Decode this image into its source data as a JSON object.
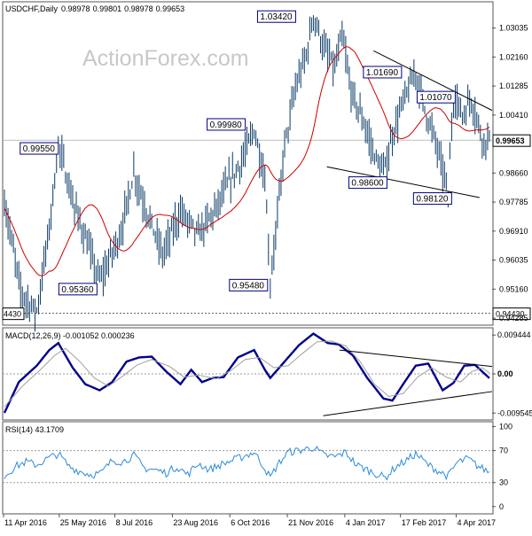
{
  "chart_data": [
    {
      "type": "ohlc",
      "panel": "price",
      "symbol": "USDCHF",
      "timeframe": "Daily",
      "title": "USDCHF,Daily",
      "header_ohlc": [
        "0.98978",
        "0.99801",
        "0.98978",
        "0.99653"
      ],
      "watermark": "ActionForex.com",
      "y_axis": {
        "ylim": [
          0.941,
          1.038
        ],
        "ticks": [
          "1.03035",
          "1.02160",
          "1.01285",
          "1.00410",
          "0.98660",
          "0.97785",
          "0.96910",
          "0.96035",
          "0.95160",
          "0.94285"
        ],
        "tick_values": [
          1.03035,
          1.0216,
          1.01285,
          1.0041,
          0.9866,
          0.97785,
          0.9691,
          0.96035,
          0.9516,
          0.94285
        ]
      },
      "last_price": "0.99653",
      "last_price_value": 0.99653,
      "support_line_label": "0.94430",
      "support_line_value": 0.9443,
      "support_line_left_label": "4430",
      "price_labels": [
        {
          "text": "1.03420",
          "value": 1.0342,
          "bar": 172
        },
        {
          "text": "1.01690",
          "value": 1.0169,
          "bar": 229
        },
        {
          "text": "1.01070",
          "value": 1.0107,
          "bar": 250
        },
        {
          "text": "0.99980",
          "value": 0.9998,
          "bar": 139
        },
        {
          "text": "0.99550",
          "value": 0.9955,
          "bar": 30
        },
        {
          "text": "0.98600",
          "value": 0.986,
          "bar": 211
        },
        {
          "text": "0.98120",
          "value": 0.9812,
          "bar": 247
        },
        {
          "text": "0.95360",
          "value": 0.9536,
          "bar": 53
        },
        {
          "text": "0.95480",
          "value": 0.9548,
          "bar": 148
        },
        {
          "text": "0.94430",
          "value": 0.9443,
          "bar": 18
        }
      ],
      "overlays": [
        {
          "name": "moving-average",
          "color": "#cc0000"
        }
      ],
      "trendlines": [
        {
          "name": "upper-channel",
          "from": {
            "bar": 206,
            "value": 1.0235
          },
          "to": {
            "bar": 272,
            "value": 1.0055
          }
        },
        {
          "name": "lower-channel",
          "from": {
            "bar": 180,
            "value": 0.9885
          },
          "to": {
            "bar": 265,
            "value": 0.9792
          }
        }
      ],
      "series_keypoints": [
        [
          0,
          0.978
        ],
        [
          9,
          0.951
        ],
        [
          18,
          0.9443
        ],
        [
          25,
          0.97
        ],
        [
          30,
          0.9955
        ],
        [
          38,
          0.978
        ],
        [
          45,
          0.967
        ],
        [
          53,
          0.9536
        ],
        [
          65,
          0.969
        ],
        [
          72,
          0.987
        ],
        [
          78,
          0.977
        ],
        [
          88,
          0.962
        ],
        [
          98,
          0.975
        ],
        [
          108,
          0.968
        ],
        [
          118,
          0.976
        ],
        [
          125,
          0.984
        ],
        [
          132,
          0.99
        ],
        [
          139,
          0.9998
        ],
        [
          145,
          0.985
        ],
        [
          148,
          0.9548
        ],
        [
          151,
          0.968
        ],
        [
          156,
          0.995
        ],
        [
          162,
          1.012
        ],
        [
          168,
          1.022
        ],
        [
          172,
          1.0342
        ],
        [
          178,
          1.024
        ],
        [
          184,
          1.018
        ],
        [
          188,
          1.028
        ],
        [
          193,
          1.011
        ],
        [
          200,
          1.002
        ],
        [
          206,
          0.992
        ],
        [
          211,
          0.986
        ],
        [
          216,
          0.998
        ],
        [
          222,
          1.008
        ],
        [
          229,
          1.0169
        ],
        [
          234,
          1.006
        ],
        [
          240,
          0.996
        ],
        [
          247,
          0.9812
        ],
        [
          250,
          1.0107
        ],
        [
          255,
          1.004
        ],
        [
          260,
          1.009
        ],
        [
          266,
          0.997
        ],
        [
          270,
          0.99653
        ]
      ],
      "colors": {
        "bars": "#0a3a66",
        "ma": "#cc0000",
        "trendline": "#000000",
        "label_border": "#000080"
      }
    },
    {
      "type": "line",
      "panel": "macd",
      "title": "MACD(12,26,9) -0.001052 0.000236",
      "params": "12,26,9",
      "macd_value": "-0.001052",
      "signal_value": "0.000236",
      "y_axis": {
        "ylim": [
          -0.011,
          0.011
        ],
        "ticks": [
          "0.009444",
          "0.00",
          "-0.009545"
        ],
        "tick_values": [
          0.009444,
          0.0,
          -0.009545
        ]
      },
      "series": [
        {
          "name": "MACD",
          "color": "#00008b",
          "keypoints": [
            [
              0,
              -0.0095
            ],
            [
              8,
              -0.002
            ],
            [
              18,
              0.002
            ],
            [
              25,
              0.0058
            ],
            [
              30,
              0.0075
            ],
            [
              38,
              0.0015
            ],
            [
              45,
              -0.0025
            ],
            [
              53,
              -0.004
            ],
            [
              60,
              -0.002
            ],
            [
              68,
              0.003
            ],
            [
              75,
              0.004
            ],
            [
              82,
              0.0042
            ],
            [
              90,
              0.0006
            ],
            [
              98,
              -0.0025
            ],
            [
              104,
              0.001
            ],
            [
              110,
              -0.002
            ],
            [
              116,
              -0.001
            ],
            [
              122,
              -0.0008
            ],
            [
              130,
              0.004
            ],
            [
              139,
              0.0058
            ],
            [
              145,
              0.001
            ],
            [
              148,
              -0.001
            ],
            [
              156,
              0.003
            ],
            [
              164,
              0.007
            ],
            [
              172,
              0.0098
            ],
            [
              180,
              0.0075
            ],
            [
              186,
              0.0072
            ],
            [
              194,
              0.0045
            ],
            [
              202,
              -0.001
            ],
            [
              211,
              -0.006
            ],
            [
              216,
              -0.0065
            ],
            [
              222,
              -0.0025
            ],
            [
              229,
              0.002
            ],
            [
              236,
              0.0025
            ],
            [
              244,
              -0.004
            ],
            [
              250,
              -0.0022
            ],
            [
              256,
              0.002
            ],
            [
              262,
              0.0022
            ],
            [
              270,
              -0.001052
            ]
          ]
        },
        {
          "name": "Signal",
          "color": "#a0a0a0",
          "keypoints": [
            [
              0,
              -0.008
            ],
            [
              10,
              -0.003
            ],
            [
              20,
              0.001
            ],
            [
              28,
              0.0045
            ],
            [
              34,
              0.0062
            ],
            [
              42,
              0.003
            ],
            [
              50,
              -0.001
            ],
            [
              58,
              -0.003
            ],
            [
              66,
              -0.0005
            ],
            [
              74,
              0.0022
            ],
            [
              82,
              0.0035
            ],
            [
              92,
              0.0018
            ],
            [
              100,
              -0.0008
            ],
            [
              108,
              -0.0003
            ],
            [
              118,
              -0.0012
            ],
            [
              126,
              0.0008
            ],
            [
              134,
              0.0035
            ],
            [
              142,
              0.004
            ],
            [
              150,
              0.0015
            ],
            [
              158,
              0.002
            ],
            [
              166,
              0.005
            ],
            [
              174,
              0.0078
            ],
            [
              182,
              0.008
            ],
            [
              190,
              0.0068
            ],
            [
              198,
              0.003
            ],
            [
              206,
              -0.0025
            ],
            [
              214,
              -0.0055
            ],
            [
              222,
              -0.0048
            ],
            [
              230,
              -0.0008
            ],
            [
              238,
              0.0015
            ],
            [
              246,
              -0.0008
            ],
            [
              254,
              -0.002
            ],
            [
              260,
              0.0005
            ],
            [
              266,
              0.0015
            ],
            [
              270,
              0.000236
            ]
          ]
        }
      ],
      "trendlines": [
        {
          "name": "macd-upper",
          "from": {
            "bar": 187,
            "value": 0.0058
          },
          "to": {
            "bar": 272,
            "value": 0.0018
          }
        },
        {
          "name": "macd-lower",
          "from": {
            "bar": 178,
            "value": -0.0102
          },
          "to": {
            "bar": 272,
            "value": -0.0043
          }
        }
      ]
    },
    {
      "type": "line",
      "panel": "rsi",
      "title": "RSI(14) 43.1709",
      "params": "14",
      "value": "43.1709",
      "y_axis": {
        "ylim": [
          -8,
          105
        ],
        "ticks": [
          "100",
          "70",
          "30",
          "0"
        ],
        "tick_values": [
          100,
          70,
          30,
          0
        ]
      },
      "reference_lines": [
        70,
        30
      ],
      "series": [
        {
          "name": "RSI",
          "color": "#2e8bd8",
          "keypoints": [
            [
              0,
              38
            ],
            [
              6,
              50
            ],
            [
              12,
              56
            ],
            [
              18,
              52
            ],
            [
              24,
              60
            ],
            [
              30,
              66
            ],
            [
              36,
              50
            ],
            [
              42,
              44
            ],
            [
              48,
              40
            ],
            [
              54,
              42
            ],
            [
              60,
              58
            ],
            [
              66,
              56
            ],
            [
              72,
              64
            ],
            [
              78,
              48
            ],
            [
              84,
              46
            ],
            [
              90,
              42
            ],
            [
              96,
              50
            ],
            [
              102,
              40
            ],
            [
              108,
              54
            ],
            [
              114,
              46
            ],
            [
              120,
              52
            ],
            [
              126,
              57
            ],
            [
              132,
              62
            ],
            [
              139,
              68
            ],
            [
              145,
              48
            ],
            [
              148,
              36
            ],
            [
              152,
              52
            ],
            [
              158,
              68
            ],
            [
              164,
              70
            ],
            [
              172,
              74
            ],
            [
              178,
              64
            ],
            [
              184,
              62
            ],
            [
              190,
              68
            ],
            [
              196,
              52
            ],
            [
              202,
              46
            ],
            [
              208,
              40
            ],
            [
              212,
              36
            ],
            [
              218,
              50
            ],
            [
              224,
              58
            ],
            [
              229,
              66
            ],
            [
              236,
              52
            ],
            [
              242,
              44
            ],
            [
              247,
              38
            ],
            [
              252,
              55
            ],
            [
              258,
              60
            ],
            [
              264,
              50
            ],
            [
              270,
              43.1709
            ]
          ]
        }
      ]
    }
  ],
  "x_axis": {
    "labels": [
      "11 Apr 2016",
      "25 May 2016",
      "8 Jul 2016",
      "23 Aug 2016",
      "6 Oct 2016",
      "21 Nov 2016",
      "4 Jan 2017",
      "17 Feb 2017",
      "4 Apr 2017"
    ],
    "label_bars": [
      0,
      31,
      62,
      94,
      126,
      158,
      190,
      221,
      252
    ],
    "total_bars": 272
  }
}
